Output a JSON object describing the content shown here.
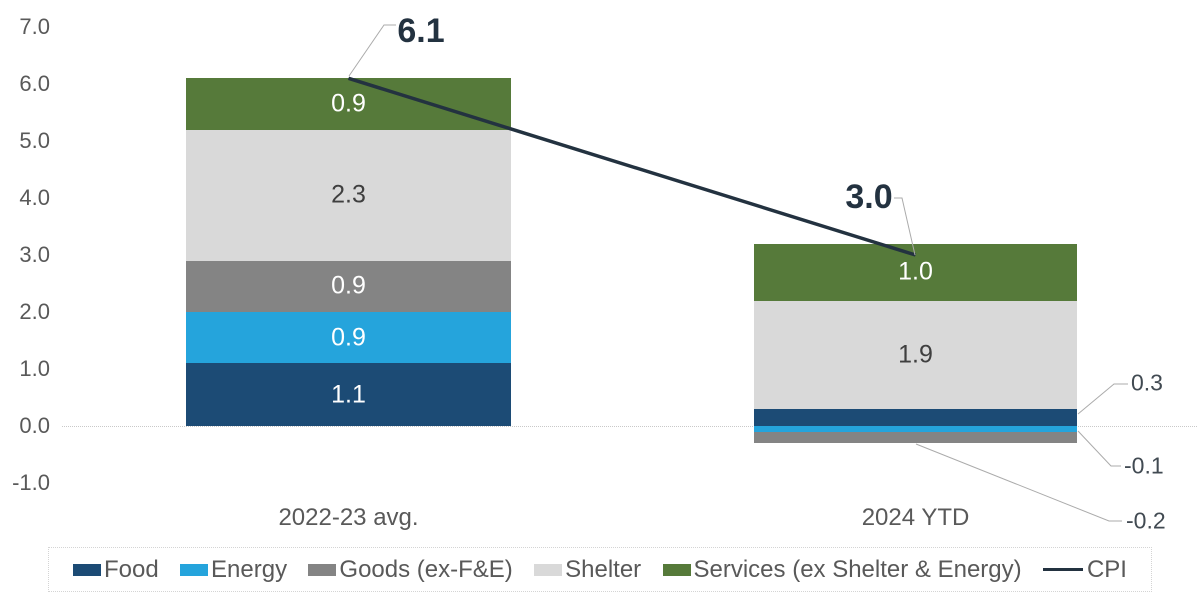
{
  "chart_data": {
    "type": "bar",
    "subtype": "stacked-column-with-line",
    "title": "",
    "categories": [
      "2022-23 avg.",
      "2024 YTD"
    ],
    "series": [
      {
        "name": "Food",
        "color": "#1C4B75",
        "values": [
          1.1,
          0.3
        ]
      },
      {
        "name": "Energy",
        "color": "#25A4DC",
        "values": [
          0.9,
          -0.1
        ]
      },
      {
        "name": "Goods (ex-F&E)",
        "color": "#848484",
        "values": [
          0.9,
          -0.2
        ]
      },
      {
        "name": "Shelter",
        "color": "#D9D9D9",
        "values": [
          2.3,
          1.9
        ]
      },
      {
        "name": "Services (ex Shelter & Energy)",
        "color": "#567A3A",
        "values": [
          0.9,
          1.0
        ]
      }
    ],
    "line_series": {
      "name": "CPI",
      "color": "#233240",
      "values": [
        6.1,
        3.0
      ]
    },
    "y_axis": {
      "min": -1.0,
      "max": 7.0,
      "step": 1.0,
      "tick_labels": [
        "7.0",
        "6.0",
        "5.0",
        "4.0",
        "3.0",
        "2.0",
        "1.0",
        "0.0",
        "-1.0"
      ],
      "grid": "zero-line-only"
    },
    "total_labels": [
      {
        "id": "total-2022",
        "text": "6.1"
      },
      {
        "id": "total-2024",
        "text": "3.0"
      }
    ],
    "segment_labels": [
      {
        "category": 0,
        "series": 0,
        "text": "1.1",
        "color": "#FFFFFF"
      },
      {
        "category": 0,
        "series": 1,
        "text": "0.9",
        "color": "#FFFFFF"
      },
      {
        "category": 0,
        "series": 2,
        "text": "0.9",
        "color": "#FFFFFF"
      },
      {
        "category": 0,
        "series": 3,
        "text": "2.3",
        "color": "#3F3F3F"
      },
      {
        "category": 0,
        "series": 4,
        "text": "0.9",
        "color": "#FFFFFF"
      },
      {
        "category": 1,
        "series": 3,
        "text": "1.9",
        "color": "#3F3F3F"
      },
      {
        "category": 1,
        "series": 4,
        "text": "1.0",
        "color": "#FFFFFF"
      }
    ],
    "callout_labels": [
      {
        "id": "food-2024",
        "text": "0.3"
      },
      {
        "id": "energy-2024",
        "text": "-0.1"
      },
      {
        "id": "goods-2024",
        "text": "-0.2"
      }
    ],
    "legend": {
      "position": "bottom",
      "items": [
        {
          "label": "Food",
          "swatch": "#1C4B75",
          "type": "box"
        },
        {
          "label": "Energy",
          "swatch": "#25A4DC",
          "type": "box"
        },
        {
          "label": "Goods (ex-F&E)",
          "swatch": "#848484",
          "type": "box"
        },
        {
          "label": "Shelter",
          "swatch": "#D9D9D9",
          "type": "box"
        },
        {
          "label": "Services (ex Shelter & Energy)",
          "swatch": "#567A3A",
          "type": "box"
        },
        {
          "label": "CPI",
          "swatch": "#233240",
          "type": "line"
        }
      ]
    },
    "colors": {
      "axis_text": "#595959",
      "annotation_text": "#233240",
      "callout_text": "#414A52",
      "leader_line": "#ABABAB",
      "zero_line": "#C9C9C9",
      "background": "#FFFFFF"
    }
  }
}
